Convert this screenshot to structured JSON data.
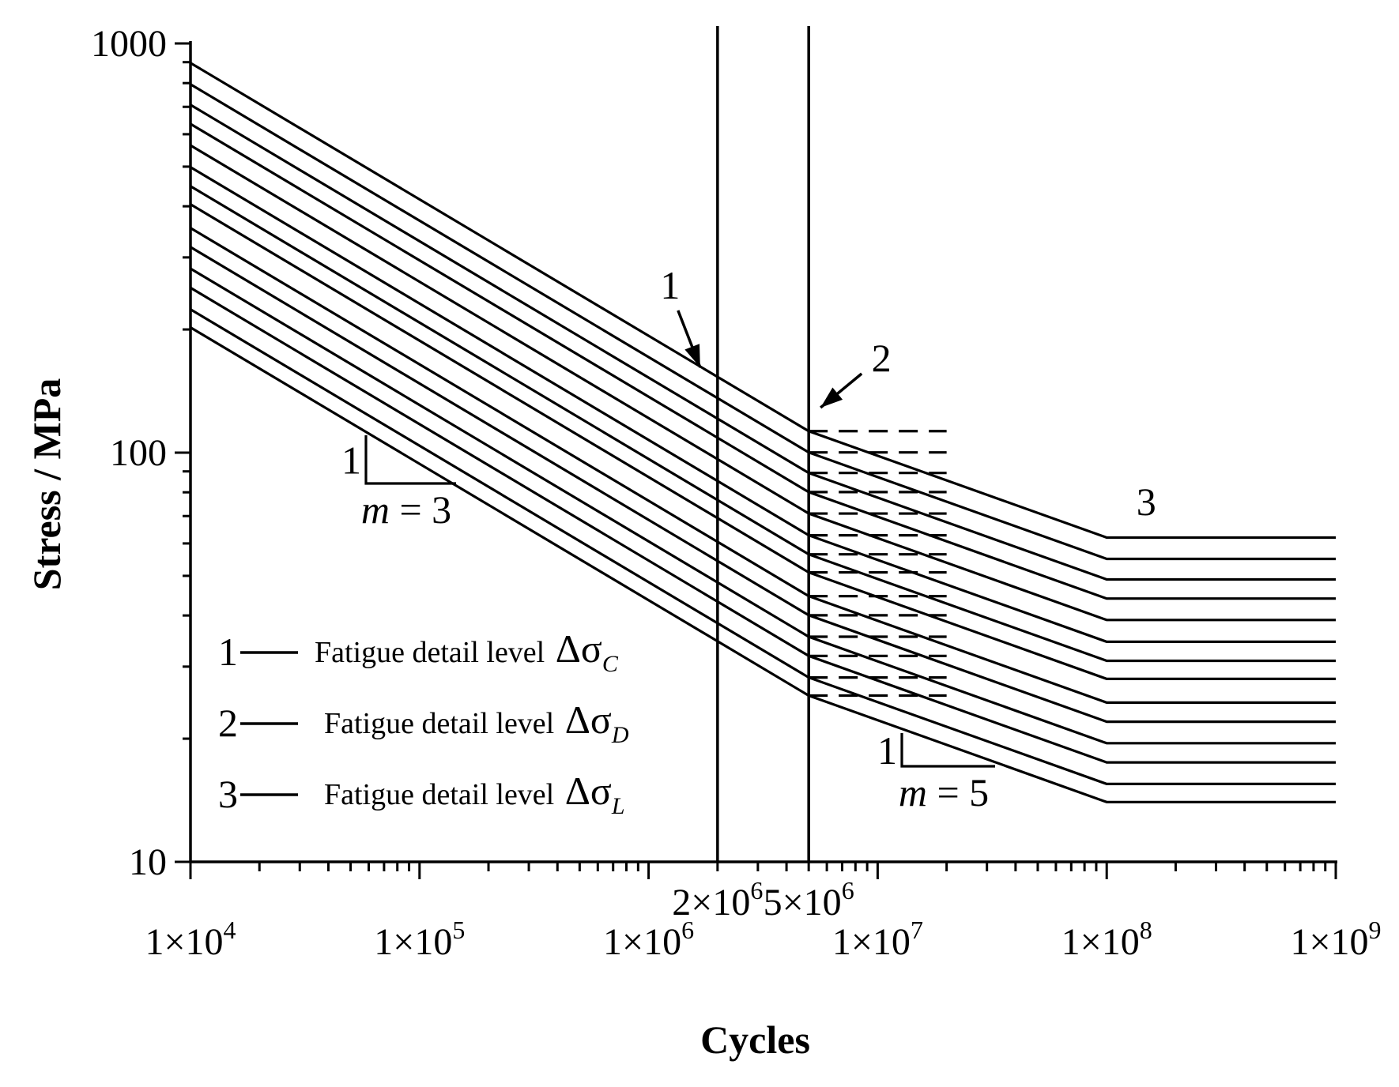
{
  "chart_data": {
    "type": "line",
    "title": "",
    "xlabel": "Cycles",
    "ylabel": "Stress / MPa",
    "xscale": "log",
    "yscale": "log",
    "xlim": [
      10000,
      1000000000
    ],
    "ylim": [
      10,
      1000
    ],
    "grid": false,
    "x_tick_labels": [
      {
        "value": 10000,
        "mantissa": "1",
        "exponent": "4"
      },
      {
        "value": 100000,
        "mantissa": "1",
        "exponent": "5"
      },
      {
        "value": 1000000,
        "mantissa": "1",
        "exponent": "6"
      },
      {
        "value": 10000000,
        "mantissa": "1",
        "exponent": "7"
      },
      {
        "value": 100000000,
        "mantissa": "1",
        "exponent": "8"
      },
      {
        "value": 1000000000,
        "mantissa": "1",
        "exponent": "9"
      }
    ],
    "x_extra_tick_labels": [
      {
        "value": 2000000,
        "mantissa": "2",
        "exponent": "6"
      },
      {
        "value": 5000000,
        "mantissa": "5",
        "exponent": "6"
      }
    ],
    "y_tick_labels": [
      {
        "value": 10,
        "label": "10"
      },
      {
        "value": 100,
        "label": "100"
      },
      {
        "value": 1000,
        "label": "1000"
      }
    ],
    "reference_lines_x": [
      2000000,
      5000000
    ],
    "knee_cycles_1": 5000000,
    "knee_cycles_2": 100000000,
    "end_cycles": 1000000000,
    "slope_1": 3,
    "slope_2": 5,
    "series_delta_sigma_L": [
      14,
      15.5,
      17.5,
      19.5,
      22,
      24.5,
      28,
      31,
      34.5,
      39,
      44,
      49,
      55,
      62
    ],
    "dashed_cutoff_cycles": 20000000,
    "annotations": [
      {
        "text": "1",
        "target_x": 2000000
      },
      {
        "text": "2",
        "target_x": 5000000
      },
      {
        "text": "3"
      }
    ],
    "slope_markers": [
      {
        "rise": "1",
        "m_symbol": "m",
        "equals": " = ",
        "value": "3"
      },
      {
        "rise": "1",
        "m_symbol": "m",
        "equals": " = ",
        "value": "5"
      }
    ],
    "legend": [
      {
        "number": "1",
        "label": "Fatigue detail level ",
        "symbol": "Δσ",
        "subscript": "C"
      },
      {
        "number": "2",
        "label": "Fatigue detail level ",
        "symbol": "Δσ",
        "subscript": "D"
      },
      {
        "number": "3",
        "label": "Fatigue detail level ",
        "symbol": "Δσ",
        "subscript": "L"
      }
    ],
    "legend_position": "lower-left",
    "line_color": "#000000"
  }
}
